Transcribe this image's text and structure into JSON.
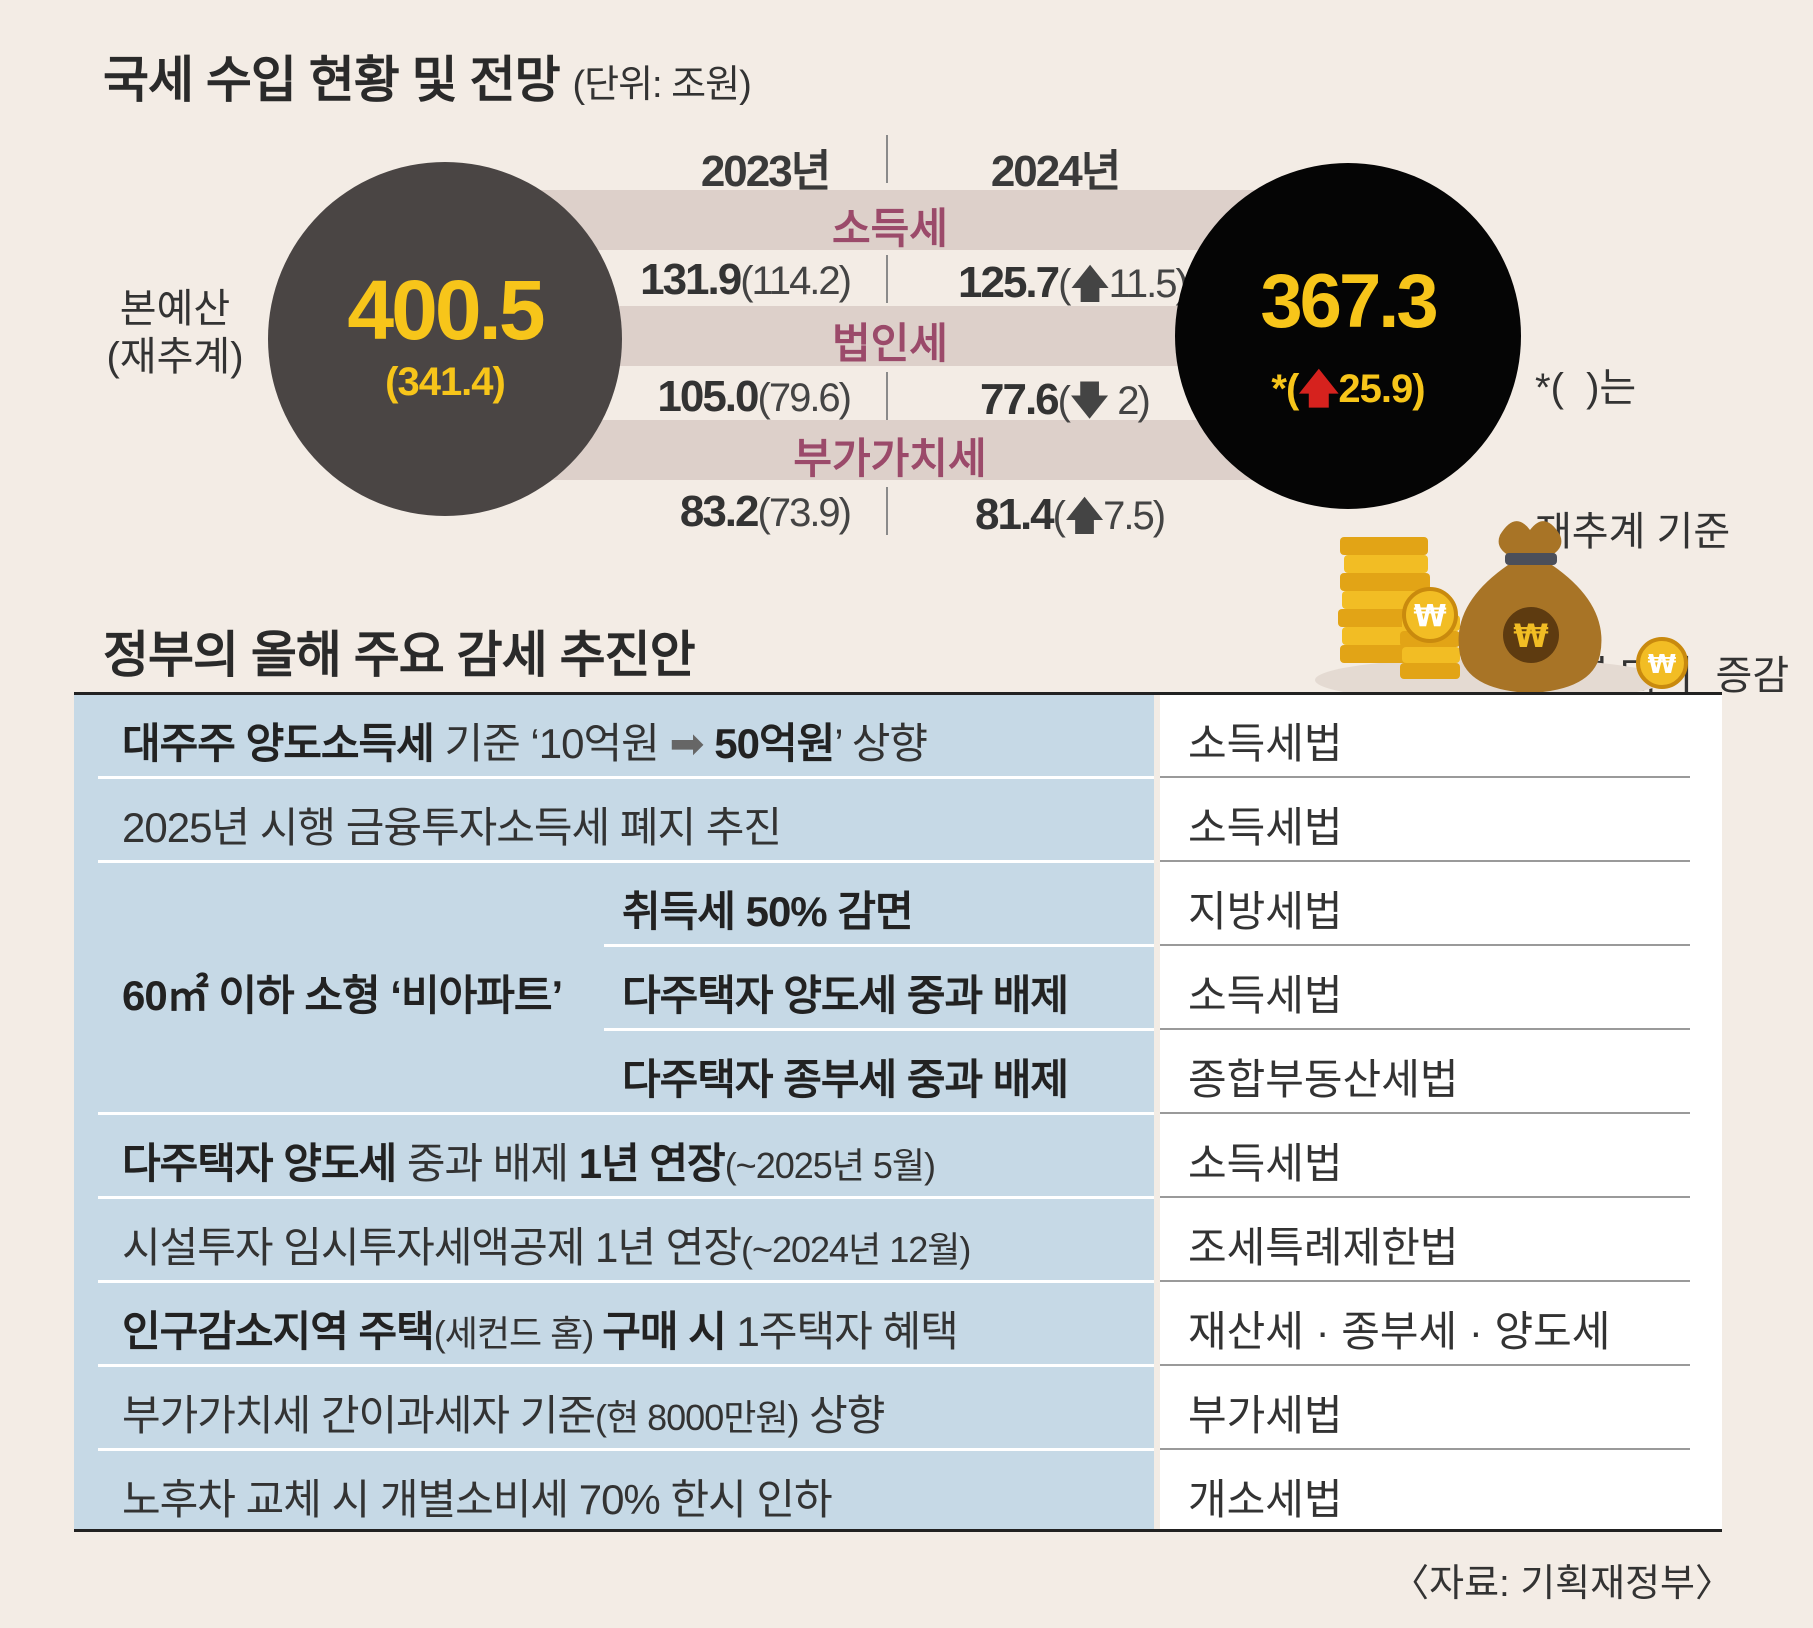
{
  "revenue": {
    "title": "국세 수입 현황 및 전망",
    "unit": "(단위: 조원)",
    "year_2023": "2023년",
    "year_2024": "2024년",
    "left_label_line1": "본예산",
    "left_label_line2": "(재추계)",
    "total_2023": "400.5",
    "total_2023_sub": "(341.4)",
    "total_2024": "367.3",
    "total_2024_sub_prefix": "*(",
    "total_2024_sub_arrow": "🡅",
    "total_2024_sub_value": "25.9)",
    "note_line1": "*(  )는",
    "note_line2": "재추계 기준",
    "note_line3": "전년 대비  증감",
    "rows": [
      {
        "name": "소득세",
        "v2023": "131.9",
        "v2023_sub": "(114.2)",
        "v2024": "125.7",
        "v2024_open": "(",
        "v2024_arrow": "🡅",
        "v2024_delta": "11.5)"
      },
      {
        "name": "법인세",
        "v2023": "105.0",
        "v2023_sub": "(79.6)",
        "v2024": "77.6",
        "v2024_open": "(",
        "v2024_arrow": "🡇",
        "v2024_delta": " 2)"
      },
      {
        "name": "부가가치세",
        "v2023": "83.2",
        "v2023_sub": "(73.9)",
        "v2024": "81.4",
        "v2024_open": "(",
        "v2024_arrow": "🡅",
        "v2024_delta": "7.5)"
      }
    ],
    "coin_symbol": "₩"
  },
  "plan": {
    "title": "정부의 올해 주요 감세 추진안",
    "r1_b1": "대주주 양도소득세",
    "r1_t1": " 기준 ‘10억원 ",
    "r1_arrow": "➡",
    "r1_b2": " 50억원",
    "r1_t2": "’ 상향",
    "r1_law": "소득세법",
    "r2_t": "2025년 시행 금융투자소득세 폐지 추진",
    "r2_law": "소득세법",
    "group_label": "60㎡ 이하 소형 ‘비아파트’",
    "g1": "취득세 50% 감면",
    "g1_law": "지방세법",
    "g2": "다주택자 양도세 중과 배제",
    "g2_law": "소득세법",
    "g3": "다주택자 종부세 중과 배제",
    "g3_law": "종합부동산세법",
    "r6_b1": "다주택자 양도세",
    "r6_t1": " 중과 배제 ",
    "r6_b2": "1년 연장",
    "r6_s": "(~2025년 5월)",
    "r6_law": "소득세법",
    "r7_t": "시설투자 임시투자세액공제 1년 연장",
    "r7_s": "(~2024년 12월)",
    "r7_law": "조세특례제한법",
    "r8_b1": "인구감소지역 주택",
    "r8_s": "(세컨드 홈) ",
    "r8_b2": "구매 시",
    "r8_t": " 1주택자 혜택",
    "r8_law": "재산세 · 종부세 · 양도세",
    "r9_t1": "부가가치세 간이과세자 기준",
    "r9_s": "(현 8000만원)",
    "r9_t2": " 상향",
    "r9_law": "부가세법",
    "r10_t": "노후차 교체 시 개별소비세 70% 한시 인하",
    "r10_law": "개소세법"
  },
  "source": "〈자료: 기획재정부〉",
  "colors": {
    "background": "#f3ece5",
    "left_circle": "#4a4544",
    "right_circle": "#050505",
    "gold": "#f7c51a",
    "band": "#ddd0ca",
    "tax_name": "#9b4a6a",
    "up": "#d6221e",
    "down": "#2a6db3",
    "plan_left": "#c6d9e6"
  }
}
